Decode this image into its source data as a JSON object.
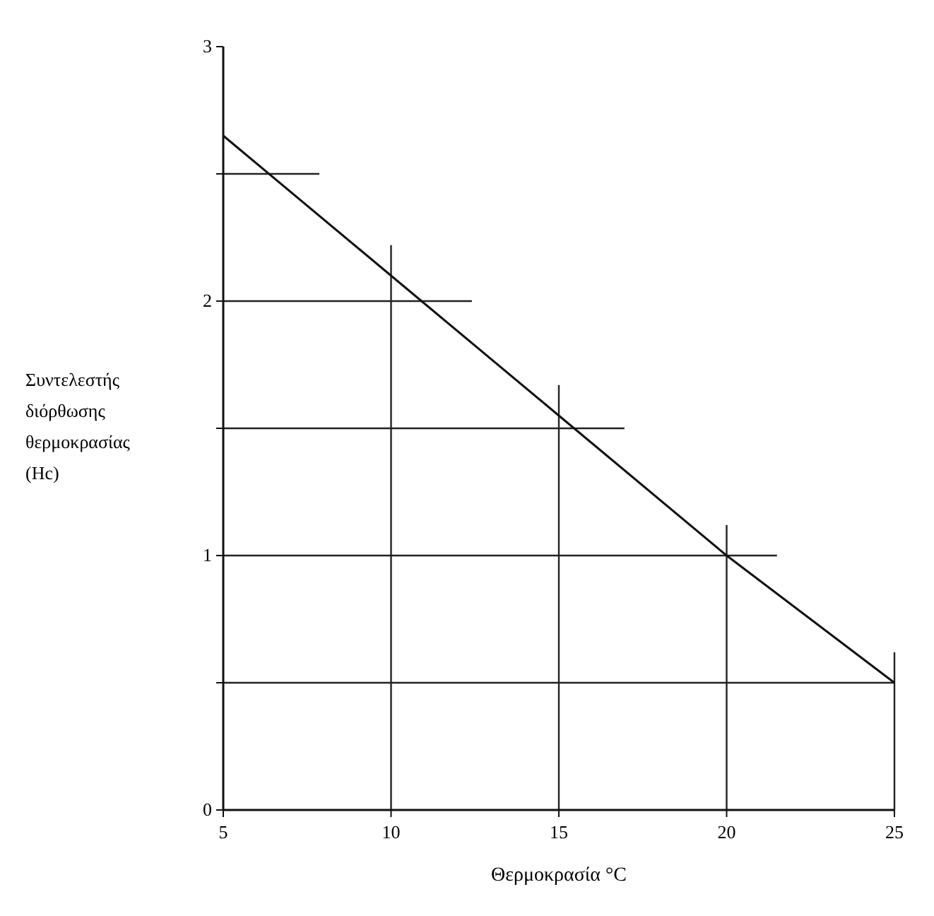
{
  "chart_data": {
    "type": "line",
    "xlabel": "Θερμοκρασία °C",
    "ylabel": "Συντελεστής\nδιόρθωσης\nθερμοκρασίας\n(Hc)",
    "x": [
      5,
      10,
      15,
      20,
      25
    ],
    "series": [
      {
        "color": "#111111",
        "values": [
          2.65,
          2.1,
          1.55,
          1.0,
          0.5
        ]
      }
    ],
    "xlim": [
      5,
      25
    ],
    "xticks": [
      5,
      10,
      15,
      20,
      25
    ],
    "ylim": [
      0,
      3
    ],
    "yticks": [
      0,
      {
        "value": 0.5,
        "label": null
      },
      1,
      {
        "value": 1.5,
        "label": null
      },
      2,
      {
        "value": 2.5,
        "label": null
      },
      3
    ],
    "ref_lines": [
      {
        "axis": "y",
        "value": 0.5
      },
      {
        "axis": "y",
        "value": 1
      },
      {
        "axis": "y",
        "value": 1.5
      },
      {
        "axis": "y",
        "value": 2
      },
      {
        "axis": "y",
        "value": 2.5
      },
      {
        "axis": "x",
        "value": 10
      },
      {
        "axis": "x",
        "value": 15
      },
      {
        "axis": "x",
        "value": 20
      },
      {
        "axis": "x",
        "value": 25
      }
    ],
    "marker": "none",
    "line_style": "solid"
  }
}
